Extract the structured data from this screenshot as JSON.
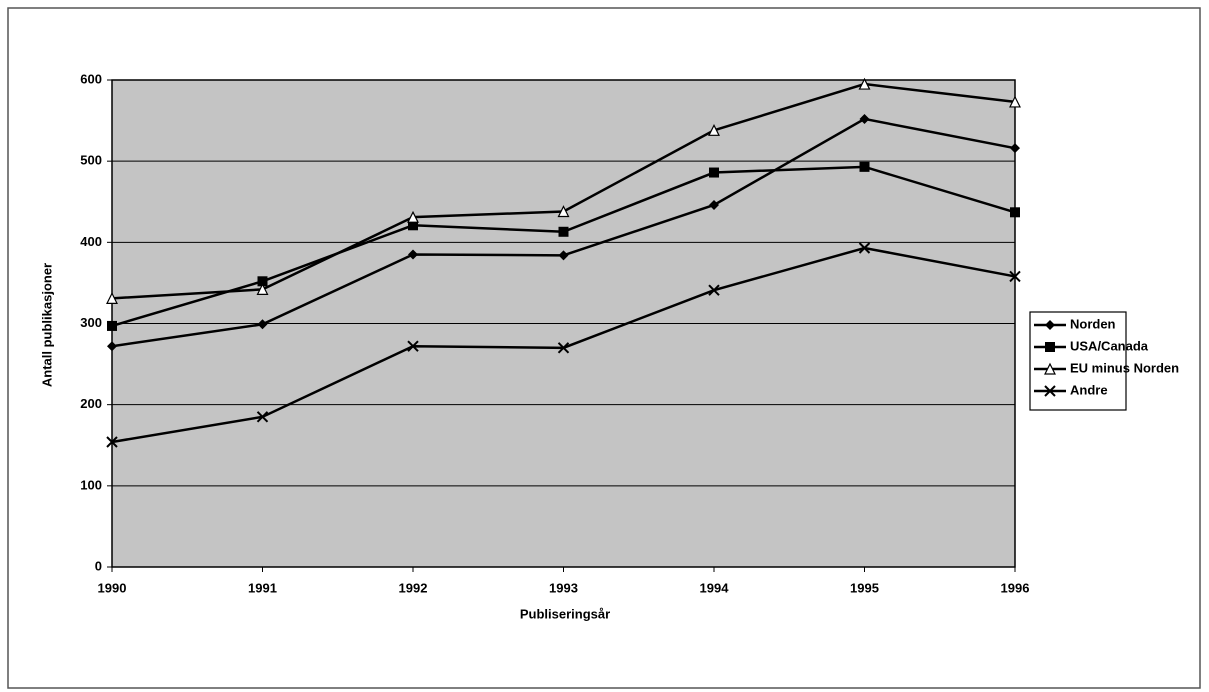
{
  "chart_data": {
    "type": "line",
    "x_label": "Publiseringsår",
    "y_label": "Antall publikasjoner",
    "x": [
      1990,
      1991,
      1992,
      1993,
      1994,
      1995,
      1996
    ],
    "xlim": [
      1990,
      1996
    ],
    "xticks": [
      1990,
      1991,
      1992,
      1993,
      1994,
      1995,
      1996
    ],
    "ylim": [
      0,
      600
    ],
    "yticks": [
      0,
      100,
      200,
      300,
      400,
      500,
      600
    ],
    "grid": true,
    "legend": "right",
    "series": [
      {
        "name": "Norden",
        "color": "#000000",
        "marker": "diamond",
        "values": [
          272,
          299,
          385,
          384,
          446,
          552,
          516
        ]
      },
      {
        "name": "USA/Canada",
        "color": "#000000",
        "marker": "square",
        "values": [
          297,
          352,
          421,
          413,
          486,
          493,
          437
        ]
      },
      {
        "name": "EU minus Norden",
        "color": "#000000",
        "marker": "triangle",
        "values": [
          331,
          342,
          431,
          438,
          538,
          595,
          573
        ]
      },
      {
        "name": "Andre",
        "color": "#000000",
        "marker": "x",
        "values": [
          154,
          185,
          272,
          270,
          341,
          393,
          358
        ]
      }
    ]
  }
}
